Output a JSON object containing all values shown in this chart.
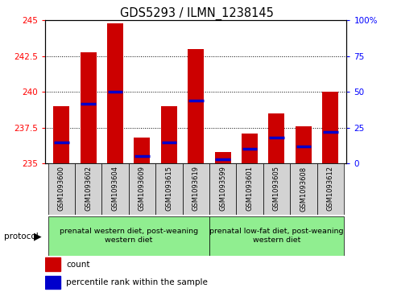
{
  "title": "GDS5293 / ILMN_1238145",
  "samples": [
    "GSM1093600",
    "GSM1093602",
    "GSM1093604",
    "GSM1093609",
    "GSM1093615",
    "GSM1093619",
    "GSM1093599",
    "GSM1093601",
    "GSM1093605",
    "GSM1093608",
    "GSM1093612"
  ],
  "counts": [
    239.0,
    242.8,
    244.8,
    236.8,
    239.0,
    243.0,
    235.8,
    237.1,
    238.5,
    237.6,
    240.0
  ],
  "percentiles": [
    15,
    42,
    50,
    5,
    15,
    44,
    3,
    10,
    18,
    12,
    22
  ],
  "ymin": 235,
  "ymax": 245,
  "yticks": [
    235,
    237.5,
    240,
    242.5,
    245
  ],
  "right_yticks": [
    0,
    25,
    50,
    75,
    100
  ],
  "right_ytick_labels": [
    "0",
    "25",
    "50",
    "75",
    "100%"
  ],
  "bar_color": "#cc0000",
  "percentile_color": "#0000cc",
  "group1_label": "prenatal western diet, post-weaning\nwestern diet",
  "group2_label": "prenatal low-fat diet, post-weaning\nwestern diet",
  "protocol_label": "protocol",
  "legend_count": "count",
  "legend_percentile": "percentile rank within the sample",
  "bar_width": 0.6
}
